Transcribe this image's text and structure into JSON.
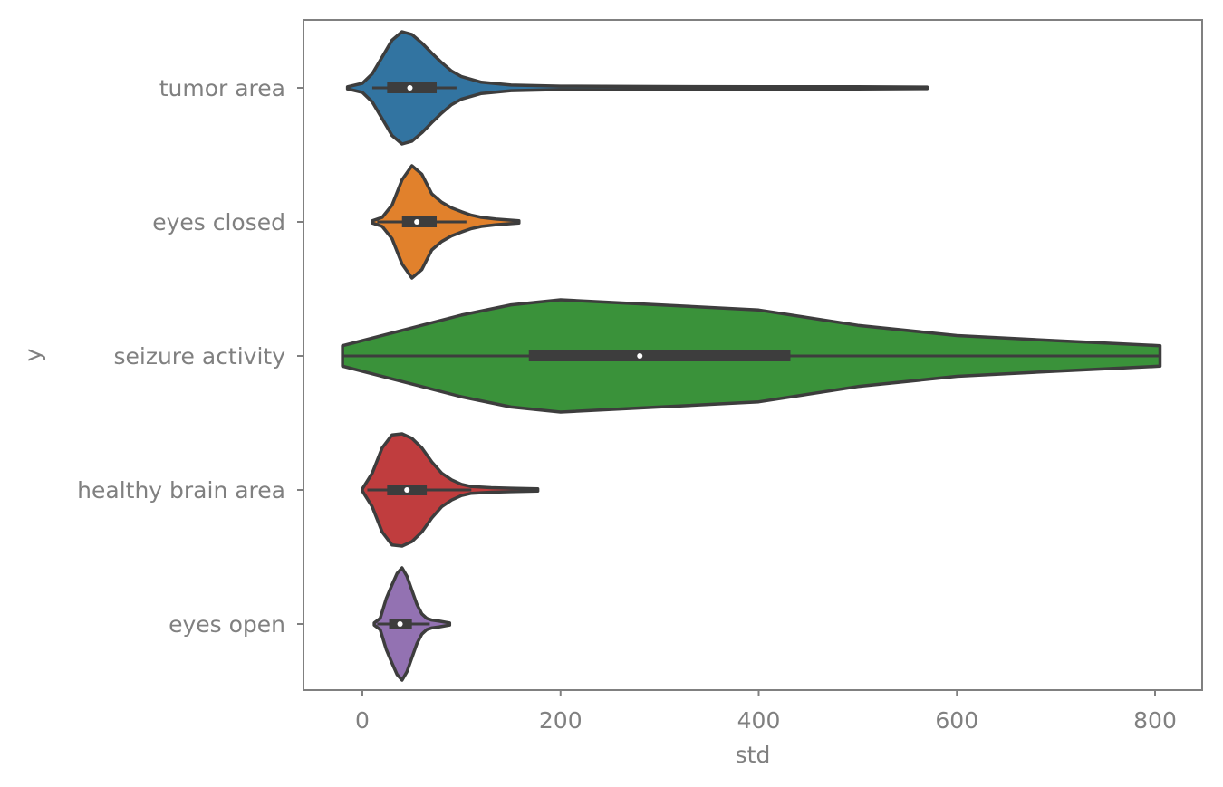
{
  "chart_data": {
    "type": "violin",
    "orientation": "horizontal",
    "xlabel": "std",
    "ylabel": "y",
    "xlim": [
      -60,
      850
    ],
    "xticks": [
      0,
      200,
      400,
      600,
      800
    ],
    "grid": false,
    "categories": [
      "tumor area",
      "eyes closed",
      "seizure activity",
      "healthy brain area",
      "eyes open"
    ],
    "violins": [
      {
        "category": "tumor area",
        "color": "#3274a1",
        "min": -15,
        "max": 570,
        "q1": 25,
        "median": 48,
        "q3": 75,
        "whisker_low": 10,
        "whisker_high": 95,
        "density": [
          [
            -15,
            0.02
          ],
          [
            0,
            0.08
          ],
          [
            10,
            0.25
          ],
          [
            20,
            0.55
          ],
          [
            30,
            0.85
          ],
          [
            40,
            1.0
          ],
          [
            50,
            0.95
          ],
          [
            60,
            0.8
          ],
          [
            70,
            0.62
          ],
          [
            80,
            0.45
          ],
          [
            90,
            0.3
          ],
          [
            100,
            0.2
          ],
          [
            120,
            0.1
          ],
          [
            150,
            0.05
          ],
          [
            200,
            0.03
          ],
          [
            300,
            0.025
          ],
          [
            400,
            0.02
          ],
          [
            500,
            0.02
          ],
          [
            570,
            0.015
          ]
        ]
      },
      {
        "category": "eyes closed",
        "color": "#e1812c",
        "min": 10,
        "max": 158,
        "q1": 40,
        "median": 55,
        "q3": 75,
        "whisker_low": 15,
        "whisker_high": 105,
        "density": [
          [
            10,
            0.02
          ],
          [
            20,
            0.08
          ],
          [
            30,
            0.3
          ],
          [
            40,
            0.75
          ],
          [
            50,
            1.0
          ],
          [
            60,
            0.85
          ],
          [
            70,
            0.5
          ],
          [
            80,
            0.35
          ],
          [
            90,
            0.25
          ],
          [
            100,
            0.18
          ],
          [
            110,
            0.12
          ],
          [
            120,
            0.08
          ],
          [
            135,
            0.05
          ],
          [
            158,
            0.02
          ]
        ]
      },
      {
        "category": "seizure activity",
        "color": "#3a923a",
        "min": -20,
        "max": 805,
        "q1": 168,
        "median": 280,
        "q3": 432,
        "whisker_low": -20,
        "whisker_high": 805,
        "density": [
          [
            -20,
            0.002
          ],
          [
            0,
            0.003
          ],
          [
            100,
            0.008
          ],
          [
            150,
            0.01
          ],
          [
            200,
            0.011
          ],
          [
            300,
            0.01
          ],
          [
            400,
            0.009
          ],
          [
            500,
            0.006
          ],
          [
            600,
            0.004
          ],
          [
            700,
            0.003
          ],
          [
            805,
            0.002
          ]
        ]
      },
      {
        "category": "healthy brain area",
        "color": "#c03d3e",
        "min": 0,
        "max": 177,
        "q1": 25,
        "median": 45,
        "q3": 65,
        "whisker_low": 5,
        "whisker_high": 110,
        "density": [
          [
            0,
            0.02
          ],
          [
            10,
            0.3
          ],
          [
            20,
            0.75
          ],
          [
            30,
            0.98
          ],
          [
            40,
            1.0
          ],
          [
            50,
            0.92
          ],
          [
            60,
            0.75
          ],
          [
            70,
            0.5
          ],
          [
            80,
            0.3
          ],
          [
            90,
            0.18
          ],
          [
            100,
            0.1
          ],
          [
            110,
            0.06
          ],
          [
            130,
            0.04
          ],
          [
            150,
            0.03
          ],
          [
            177,
            0.02
          ]
        ]
      },
      {
        "category": "eyes open",
        "color": "#9372b2",
        "min": 12,
        "max": 88,
        "q1": 27,
        "median": 38,
        "q3": 50,
        "whisker_low": 15,
        "whisker_high": 68,
        "density": [
          [
            12,
            0.02
          ],
          [
            18,
            0.1
          ],
          [
            24,
            0.45
          ],
          [
            30,
            0.7
          ],
          [
            35,
            0.9
          ],
          [
            40,
            1.0
          ],
          [
            45,
            0.85
          ],
          [
            50,
            0.6
          ],
          [
            55,
            0.35
          ],
          [
            60,
            0.18
          ],
          [
            65,
            0.1
          ],
          [
            70,
            0.07
          ],
          [
            78,
            0.05
          ],
          [
            88,
            0.02
          ]
        ]
      }
    ]
  }
}
